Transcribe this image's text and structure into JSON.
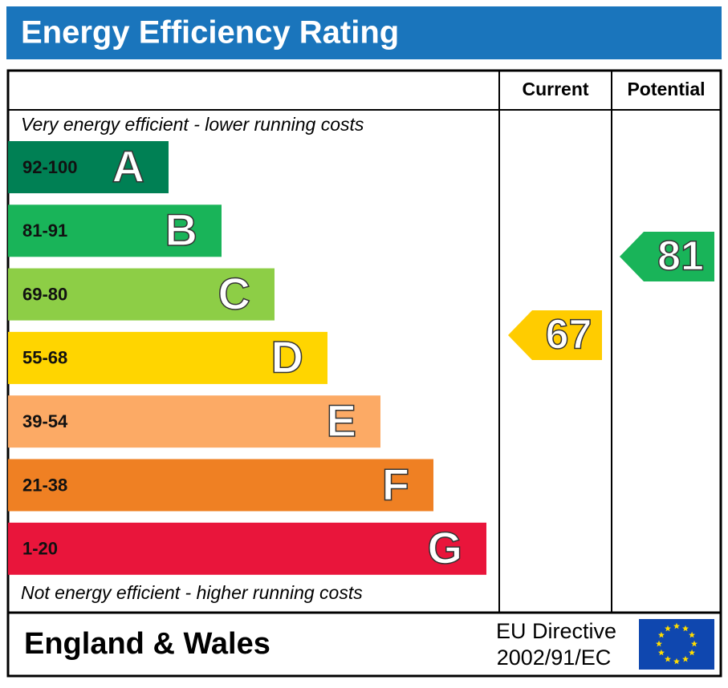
{
  "title": "Energy Efficiency Rating",
  "columns": {
    "current": "Current",
    "potential": "Potential"
  },
  "top_note": "Very energy efficient - lower running costs",
  "bottom_note": "Not energy efficient - higher running costs",
  "bands": [
    {
      "range": "92-100",
      "letter": "A",
      "color": "#008054"
    },
    {
      "range": "81-91",
      "letter": "B",
      "color": "#19b459"
    },
    {
      "range": "69-80",
      "letter": "C",
      "color": "#8dce46"
    },
    {
      "range": "55-68",
      "letter": "D",
      "color": "#ffd500"
    },
    {
      "range": "39-54",
      "letter": "E",
      "color": "#fcaa65"
    },
    {
      "range": "21-38",
      "letter": "F",
      "color": "#ef8023"
    },
    {
      "range": "1-20",
      "letter": "G",
      "color": "#e9153b"
    }
  ],
  "current": {
    "value": 67,
    "color": "#ffcc00"
  },
  "potential": {
    "value": 81,
    "color": "#19b459"
  },
  "footer": {
    "region": "England & Wales",
    "directive": [
      "EU Directive",
      "2002/91/EC"
    ]
  }
}
